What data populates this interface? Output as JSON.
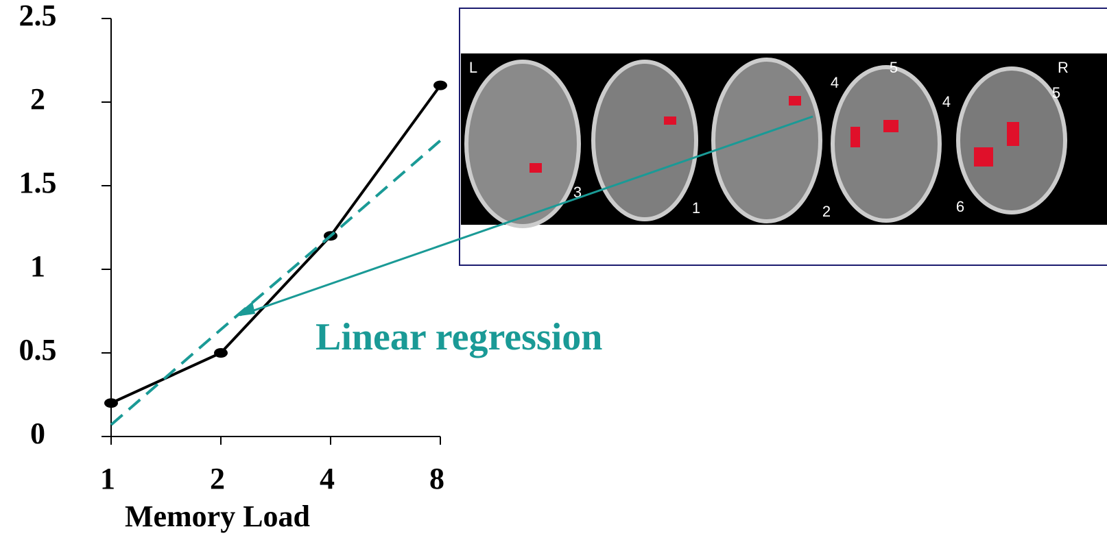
{
  "chart_data": {
    "type": "line",
    "x_label": "Memory Load",
    "annotation": "Linear regression",
    "categories": [
      "1",
      "2",
      "4",
      "8"
    ],
    "series": [
      {
        "color": "#000000",
        "values": [
          0.2,
          0.5,
          1.2,
          2.1
        ]
      },
      {
        "color": "#1a9a96",
        "dashed": true,
        "values": [
          0.07,
          0.64,
          1.2,
          1.77
        ]
      }
    ],
    "ylim": [
      0,
      2.5
    ],
    "yticks": [
      0,
      0.5,
      1,
      1.5,
      2,
      2.5
    ],
    "image_labels": [
      "L",
      "R",
      "3",
      "1",
      "4",
      "5",
      "4",
      "2",
      "5",
      "6"
    ]
  }
}
